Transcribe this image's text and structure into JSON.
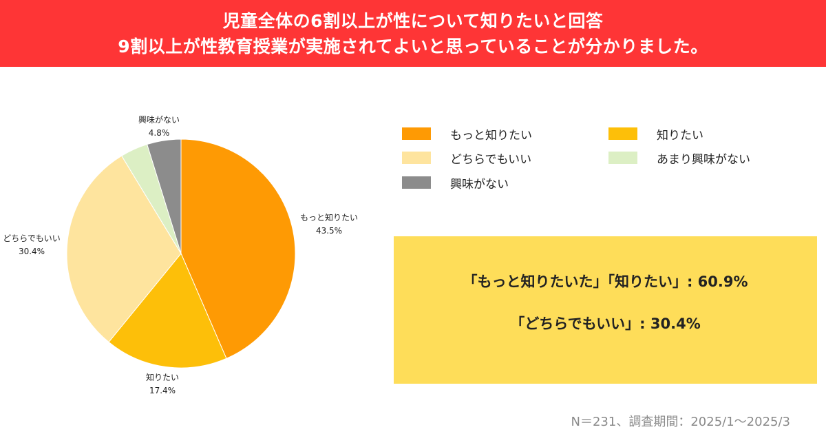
{
  "header": {
    "line1": "児童全体の6割以上が性について知りたいと回答",
    "line2": "9割以上が性教育授業が実施されてよいと思っていることが分かりました。"
  },
  "chart_data": {
    "type": "pie",
    "categories": [
      "もっと知りたい",
      "知りたい",
      "どちらでもいい",
      "あまり興味がない",
      "興味がない"
    ],
    "values": [
      43.5,
      17.4,
      30.4,
      3.9,
      4.8
    ],
    "value_labels": [
      "43.5%",
      "17.4%",
      "30.4%",
      "",
      "4.8%"
    ],
    "colors": [
      "#fe9a04",
      "#fdbf09",
      "#fee49e",
      "#dcefc4",
      "#8c8c8c"
    ],
    "legend_position": "right"
  },
  "summary": {
    "line1": "「もっと知りたいた」「知りたい」: 60.9%",
    "line2": "「どちらでもいい」: 30.4%"
  },
  "footnote": "N＝231、調査期間：2025/1〜2025/3"
}
